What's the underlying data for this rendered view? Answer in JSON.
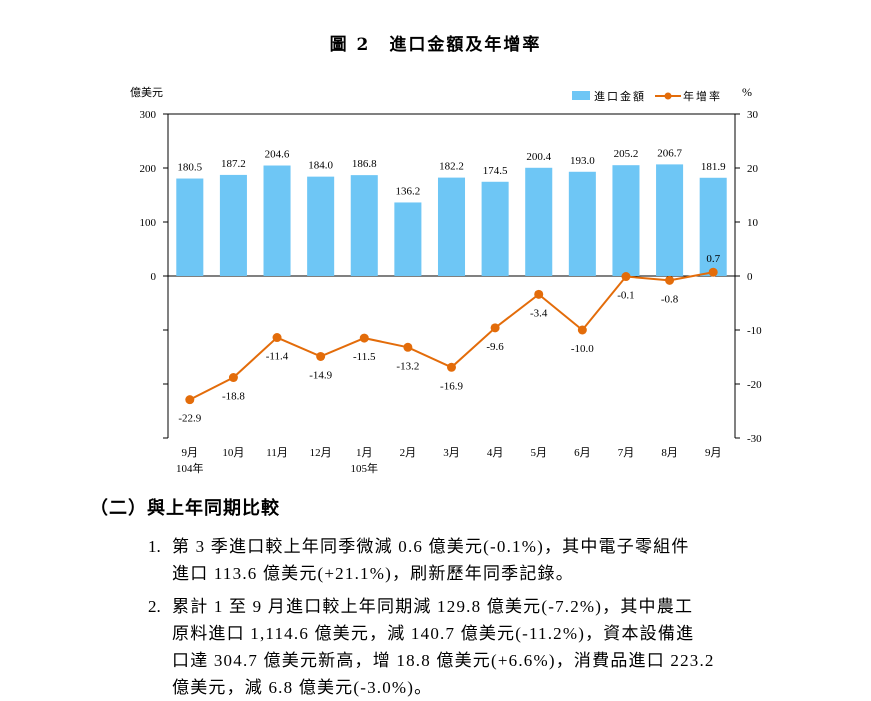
{
  "chart_title": "圖 2　進口金額及年增率",
  "chart_data": {
    "type": "bar+line",
    "title": "圖 2　進口金額及年增率",
    "categories": [
      "9月",
      "10月",
      "11月",
      "12月",
      "1月",
      "2月",
      "3月",
      "4月",
      "5月",
      "6月",
      "7月",
      "8月",
      "9月"
    ],
    "year_labels": {
      "0": "104年",
      "4": "105年"
    },
    "series": [
      {
        "name": "進口金額",
        "type": "bar",
        "axis": "left",
        "color": "#6ec6f5",
        "values": [
          180.5,
          187.2,
          204.6,
          184.0,
          186.8,
          136.2,
          182.2,
          174.5,
          200.4,
          193.0,
          205.2,
          206.7,
          181.9
        ],
        "labels": [
          "180.5",
          "187.2",
          "204.6",
          "184.0",
          "186.8",
          "136.2",
          "182.2",
          "174.5",
          "200.4",
          "193.0",
          "205.2",
          "206.7",
          "181.9"
        ]
      },
      {
        "name": "年增率",
        "type": "line",
        "axis": "right",
        "color": "#e36c0a",
        "values": [
          -22.9,
          -18.8,
          -11.4,
          -14.9,
          -11.5,
          -13.2,
          -16.9,
          -9.6,
          -3.4,
          -10.0,
          -0.1,
          -0.8,
          0.7
        ],
        "labels": [
          "-22.9",
          "-18.8",
          "-11.4",
          "-14.9",
          "-11.5",
          "-13.2",
          "-16.9",
          "-9.6",
          "-3.4",
          "-10.0",
          "-0.1",
          "-0.8",
          "0.7"
        ]
      }
    ],
    "left_axis": {
      "label": "億美元",
      "ticks": [
        300,
        200,
        100,
        0
      ],
      "ylim": [
        -300,
        300
      ]
    },
    "right_axis": {
      "label": "%",
      "ticks": [
        30,
        20,
        10,
        0,
        -10,
        -20,
        -30
      ],
      "ylim": [
        -30,
        30
      ]
    },
    "legend_position": "top-right"
  },
  "section": {
    "heading": "（二）與上年同期比較",
    "items": [
      {
        "num": "1.",
        "lines": [
          "第 3 季進口較上年同季微減 0.6 億美元(-0.1%)，其中電子零組件",
          "進口 113.6 億美元(+21.1%)，刷新歷年同季記錄。"
        ]
      },
      {
        "num": "2.",
        "lines": [
          "累計 1 至 9 月進口較上年同期減 129.8 億美元(-7.2%)，其中農工",
          "原料進口 1,114.6 億美元，減 140.7 億美元(-11.2%)，資本設備進",
          "口達 304.7 億美元新高，增 18.8 億美元(+6.6%)，消費品進口 223.2",
          "億美元，減 6.8 億美元(-3.0%)。"
        ]
      }
    ]
  }
}
